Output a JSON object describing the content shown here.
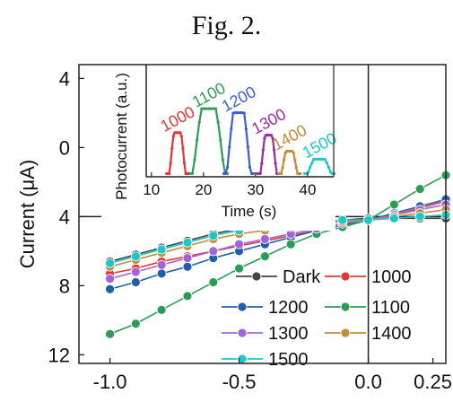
{
  "figure": {
    "title": "Fig. 2."
  },
  "chart_data": [
    {
      "type": "line",
      "xlabel": "",
      "ylabel": "Current (μA)",
      "xlim": [
        -1.12,
        0.3
      ],
      "ylim": [
        -12.5,
        4.8
      ],
      "xticks": [
        {
          "value": -1.0,
          "label": "-1.0"
        },
        {
          "value": -0.5,
          "label": "-0.5"
        },
        {
          "value": 0.0,
          "label": "0.0"
        },
        {
          "value": 0.25,
          "label": "0.25"
        }
      ],
      "yticks": [
        {
          "value": 4,
          "label": "4"
        },
        {
          "value": 0,
          "label": "0"
        },
        {
          "value": -4,
          "label": "4"
        },
        {
          "value": -8,
          "label": "8"
        },
        {
          "value": -12,
          "label": "12"
        }
      ],
      "reference_lines": {
        "y": -4,
        "x": 0.0
      },
      "x": [
        -1.0,
        -0.9,
        -0.8,
        -0.7,
        -0.6,
        -0.5,
        -0.4,
        -0.3,
        -0.2,
        -0.1,
        0.0,
        0.1,
        0.2,
        0.3
      ],
      "series": [
        {
          "name": "Dark",
          "color": "#444444",
          "values": [
            -6.6,
            -6.2,
            -5.8,
            -5.4,
            -5.0,
            -4.7,
            -4.5,
            -4.4,
            -4.3,
            -4.2,
            -4.1,
            -4.1,
            -4.1,
            -4.1
          ]
        },
        {
          "name": "1000",
          "color": "#e53535",
          "values": [
            -7.3,
            -7.0,
            -6.6,
            -6.3,
            -6.0,
            -5.7,
            -5.4,
            -5.1,
            -4.8,
            -4.5,
            -4.2,
            -3.9,
            -3.5,
            -3.1
          ]
        },
        {
          "name": "1200",
          "color": "#1f5fa8",
          "values": [
            -8.2,
            -7.8,
            -7.3,
            -6.9,
            -6.4,
            -6.0,
            -5.6,
            -5.2,
            -4.8,
            -4.5,
            -4.2,
            -3.8,
            -3.4,
            -3.0
          ]
        },
        {
          "name": "1100",
          "color": "#2e9c56",
          "values": [
            -10.8,
            -10.2,
            -9.4,
            -8.6,
            -7.8,
            -7.0,
            -6.3,
            -5.6,
            -5.0,
            -4.6,
            -4.2,
            -3.3,
            -2.4,
            -1.6
          ]
        },
        {
          "name": "1300",
          "color": "#a264d8",
          "values": [
            -7.6,
            -7.2,
            -6.8,
            -6.4,
            -6.0,
            -5.6,
            -5.3,
            -5.0,
            -4.7,
            -4.4,
            -4.2,
            -3.9,
            -3.6,
            -3.3
          ]
        },
        {
          "name": "1400",
          "color": "#c58a3a",
          "values": [
            -6.9,
            -6.5,
            -6.1,
            -5.7,
            -5.3,
            -5.0,
            -4.8,
            -4.6,
            -4.4,
            -4.3,
            -4.2,
            -4.0,
            -3.8,
            -3.6
          ]
        },
        {
          "name": "1500",
          "color": "#1ec7c7",
          "values": [
            -6.7,
            -6.3,
            -5.9,
            -5.5,
            -5.1,
            -4.8,
            -4.6,
            -4.4,
            -4.3,
            -4.2,
            -4.2,
            -4.1,
            -4.0,
            -3.9
          ]
        }
      ],
      "legend": [
        {
          "name": "Dark",
          "color": "#444444"
        },
        {
          "name": "1000",
          "color": "#e53535"
        },
        {
          "name": "1200",
          "color": "#1f5fa8"
        },
        {
          "name": "1100",
          "color": "#2e9c56"
        },
        {
          "name": "1300",
          "color": "#a264d8"
        },
        {
          "name": "1400",
          "color": "#c58a3a"
        },
        {
          "name": "1500",
          "color": "#1ec7c7"
        }
      ],
      "legend_placement": "bottom-right"
    },
    {
      "type": "line",
      "xlabel": "Time (s)",
      "ylabel": "Photocurrent (a.u.)",
      "xlim": [
        9,
        45
      ],
      "ylim": [
        0,
        1.4
      ],
      "xticks": [
        {
          "value": 10,
          "label": "10"
        },
        {
          "value": 20,
          "label": "20"
        },
        {
          "value": 30,
          "label": "30"
        },
        {
          "value": 40,
          "label": "40"
        }
      ],
      "pulses": [
        {
          "name": "1000",
          "color": "#e53535",
          "start": 13.5,
          "end": 16.5,
          "peak": 0.55
        },
        {
          "name": "1100",
          "color": "#2e9c56",
          "start": 18.0,
          "end": 24.0,
          "peak": 0.85
        },
        {
          "name": "1200",
          "color": "#3b5ed6",
          "start": 24.5,
          "end": 29.0,
          "peak": 0.8
        },
        {
          "name": "1300",
          "color": "#9b2aa8",
          "start": 31.0,
          "end": 34.0,
          "peak": 0.52
        },
        {
          "name": "1400",
          "color": "#c58a3a",
          "start": 35.0,
          "end": 38.0,
          "peak": 0.32
        },
        {
          "name": "1500",
          "color": "#1ec7c7",
          "start": 40.0,
          "end": 44.5,
          "peak": 0.22
        }
      ]
    }
  ]
}
